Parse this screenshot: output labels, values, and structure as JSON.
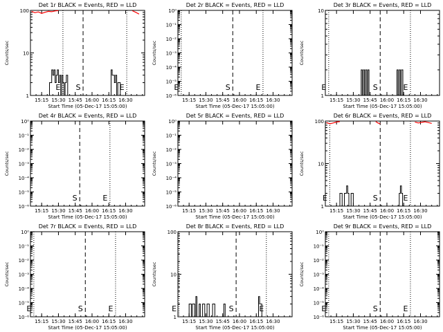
{
  "colors": {
    "events": "#000000",
    "lld": "#ff0000",
    "background": "#ffffff"
  },
  "chart_data": [
    {
      "type": "line",
      "title": "Det 1r BLACK = Events, RED = LLD",
      "xlabel": "Start Time (05-Dec-17 15:05:00)",
      "ylabel": "Counts/sec",
      "y_scale": "log",
      "ylim": [
        1,
        100
      ],
      "yticks": [
        {
          "v": 1,
          "label": "1"
        },
        {
          "v": 10,
          "label": "10"
        },
        {
          "v": 100,
          "label": "100"
        }
      ],
      "x_ticks": [
        "15:15",
        "15:30",
        "15:45",
        "16:00",
        "16:15",
        "16:30"
      ],
      "markers": {
        "E": [
          "15:34",
          "16:31"
        ],
        "S": [
          "15:52"
        ]
      },
      "lld": [
        {
          "t": [
            "15:06",
            "15:09",
            "15:12",
            "15:15",
            "15:18",
            "15:21",
            "15:24",
            "15:27",
            "15:30"
          ],
          "v": [
            95,
            88,
            92,
            85,
            90,
            95,
            93,
            97,
            99
          ]
        },
        {
          "t": [
            "16:36",
            "16:39",
            "16:42"
          ],
          "v": [
            98,
            90,
            82
          ]
        }
      ],
      "events": [
        {
          "t": [
            "15:22",
            "15:24",
            "15:25",
            "15:26",
            "15:27",
            "15:28",
            "15:29",
            "15:30",
            "15:31",
            "15:32",
            "15:33",
            "15:34",
            "15:35",
            "15:36",
            "15:37"
          ],
          "v": [
            2,
            4,
            3,
            4,
            2,
            3,
            4,
            2,
            3,
            1,
            3,
            2,
            1,
            2,
            3
          ]
        },
        {
          "t": [
            "16:17",
            "16:18",
            "16:19",
            "16:20",
            "16:21",
            "16:22",
            "16:23",
            "16:24"
          ],
          "v": [
            4,
            3,
            3,
            2,
            3,
            1,
            2,
            2
          ]
        }
      ]
    },
    {
      "type": "line",
      "title": "Det 2r BLACK = Events, RED = LLD",
      "xlabel": "Start Time (05-Dec-17 15:05:00)",
      "ylabel": "Counts/sec",
      "y_scale": "log",
      "ylim": [
        1e-06,
        1
      ],
      "yticks": [
        {
          "v": 1e-06,
          "label": "10⁻⁶"
        },
        {
          "v": 1e-05,
          "label": "10⁻⁵"
        },
        {
          "v": 0.0001,
          "label": "10⁻⁴"
        },
        {
          "v": 0.001,
          "label": "10⁻³"
        },
        {
          "v": 0.01,
          "label": "10⁻²"
        },
        {
          "v": 0.1,
          "label": "10⁻¹"
        },
        {
          "v": 1,
          "label": "10⁰"
        }
      ],
      "x_ticks": [
        "15:15",
        "15:30",
        "15:45",
        "16:00",
        "16:15",
        "16:30"
      ],
      "markers": {
        "E": [
          "15:08",
          "16:21"
        ],
        "S": [
          "15:54"
        ]
      },
      "lld": [],
      "events": []
    },
    {
      "type": "line",
      "title": "Det 3r BLACK = Events, RED = LLD",
      "xlabel": "Start Time (05-Dec-17 15:05:00)",
      "ylabel": "Counts/sec",
      "y_scale": "log",
      "ylim": [
        1,
        10
      ],
      "yticks": [
        {
          "v": 1,
          "label": "1"
        },
        {
          "v": 10,
          "label": "10"
        }
      ],
      "x_ticks": [
        "15:15",
        "15:30",
        "15:45",
        "16:00",
        "16:15",
        "16:30"
      ],
      "markers": {
        "E": [
          "15:08",
          "16:21"
        ],
        "S": [
          "15:54"
        ]
      },
      "lld": [],
      "events": [
        {
          "t": [
            "15:37",
            "15:38",
            "15:39",
            "15:40",
            "15:41",
            "15:42",
            "15:43",
            "15:44"
          ],
          "v": [
            2,
            1,
            2,
            1,
            2,
            1,
            2,
            1
          ]
        },
        {
          "t": [
            "16:09",
            "16:10",
            "16:11",
            "16:12",
            "16:13"
          ],
          "v": [
            2,
            1,
            2,
            1,
            2
          ]
        }
      ]
    },
    {
      "type": "line",
      "title": "Det 4r BLACK = Events, RED = LLD",
      "xlabel": "Start Time (05-Dec-17 15:05:00)",
      "ylabel": "Counts/sec",
      "y_scale": "log",
      "ylim": [
        1e-06,
        1
      ],
      "yticks": [
        {
          "v": 1e-06,
          "label": "10⁻⁶"
        },
        {
          "v": 1e-05,
          "label": "10⁻⁵"
        },
        {
          "v": 0.0001,
          "label": "10⁻⁴"
        },
        {
          "v": 0.001,
          "label": "10⁻³"
        },
        {
          "v": 0.01,
          "label": "10⁻²"
        },
        {
          "v": 0.1,
          "label": "10⁻¹"
        },
        {
          "v": 1,
          "label": "10⁰"
        }
      ],
      "x_ticks": [
        "15:15",
        "15:30",
        "15:45",
        "16:00",
        "16:15",
        "16:30"
      ],
      "markers": {
        "E": [
          "16:16"
        ],
        "S": [
          "15:49"
        ]
      },
      "lld": [],
      "events": []
    },
    {
      "type": "line",
      "title": "Det 5r BLACK = Events, RED = LLD",
      "xlabel": "Start Time (05-Dec-17 15:05:00)",
      "ylabel": "Counts/sec",
      "y_scale": "log",
      "ylim": [
        1e-06,
        1
      ],
      "yticks": [
        {
          "v": 1e-06,
          "label": "10⁻⁶"
        },
        {
          "v": 1e-05,
          "label": "10⁻⁵"
        },
        {
          "v": 0.0001,
          "label": "10⁻⁴"
        },
        {
          "v": 0.001,
          "label": "10⁻³"
        },
        {
          "v": 0.01,
          "label": "10⁻²"
        },
        {
          "v": 0.1,
          "label": "10⁻¹"
        },
        {
          "v": 1,
          "label": "10⁰"
        }
      ],
      "x_ticks": [
        "15:15",
        "15:30",
        "15:45",
        "16:00",
        "16:15",
        "16:30"
      ],
      "markers": {
        "E": [],
        "S": []
      },
      "lld": [],
      "events": []
    },
    {
      "type": "line",
      "title": "Det 6r BLACK = Events, RED = LLD",
      "xlabel": "Start Time (05-Dec-17 15:05:00)",
      "ylabel": "Counts/sec",
      "y_scale": "log",
      "ylim": [
        1,
        100
      ],
      "yticks": [
        {
          "v": 1,
          "label": "1"
        },
        {
          "v": 10,
          "label": "10"
        },
        {
          "v": 100,
          "label": "100"
        }
      ],
      "x_ticks": [
        "15:15",
        "15:30",
        "15:45",
        "16:00",
        "16:15",
        "16:30"
      ],
      "markers": {
        "E": [
          "15:09",
          "16:21"
        ],
        "S": [
          "15:54"
        ]
      },
      "lld": [
        {
          "t": [
            "15:06",
            "15:09",
            "15:12",
            "15:15",
            "15:18"
          ],
          "v": [
            92,
            86,
            90,
            95,
            97
          ]
        },
        {
          "t": [
            "15:50",
            "15:52",
            "15:54"
          ],
          "v": [
            97,
            90,
            86
          ]
        },
        {
          "t": [
            "16:25",
            "16:28",
            "16:31",
            "16:34",
            "16:37",
            "16:40"
          ],
          "v": [
            95,
            90,
            93,
            96,
            92,
            88
          ]
        }
      ],
      "events": [
        {
          "t": [
            "15:16",
            "15:18",
            "15:20",
            "15:22",
            "15:24",
            "15:25",
            "15:26",
            "15:28",
            "15:30"
          ],
          "v": [
            1,
            2,
            1,
            2,
            3,
            2,
            1,
            2,
            1
          ]
        },
        {
          "t": [
            "16:11",
            "16:12",
            "16:13",
            "16:14"
          ],
          "v": [
            2,
            3,
            2,
            1
          ]
        }
      ]
    },
    {
      "type": "line",
      "title": "Det 7r BLACK = Events, RED = LLD",
      "xlabel": "Start Time (05-Dec-17 15:05:00)",
      "ylabel": "Counts/sec",
      "y_scale": "log",
      "ylim": [
        1e-06,
        1
      ],
      "yticks": [
        {
          "v": 1e-06,
          "label": "10⁻⁶"
        },
        {
          "v": 1e-05,
          "label": "10⁻⁵"
        },
        {
          "v": 0.0001,
          "label": "10⁻⁴"
        },
        {
          "v": 0.001,
          "label": "10⁻³"
        },
        {
          "v": 0.01,
          "label": "10⁻²"
        },
        {
          "v": 0.1,
          "label": "10⁻¹"
        },
        {
          "v": 1,
          "label": "10⁰"
        }
      ],
      "x_ticks": [
        "15:15",
        "15:30",
        "15:45",
        "16:00",
        "16:15",
        "16:30"
      ],
      "markers": {
        "E": [
          "15:08",
          "16:21"
        ],
        "S": [
          "15:54"
        ]
      },
      "lld": [],
      "events": []
    },
    {
      "type": "line",
      "title": "Det 8r BLACK = Events, RED = LLD",
      "xlabel": "Start Time (05-Dec-17 15:05:00)",
      "ylabel": "Counts/sec",
      "y_scale": "log",
      "ylim": [
        1,
        100
      ],
      "yticks": [
        {
          "v": 1,
          "label": "1"
        },
        {
          "v": 10,
          "label": "10"
        },
        {
          "v": 100,
          "label": "100"
        }
      ],
      "x_ticks": [
        "15:15",
        "15:30",
        "15:45",
        "16:00",
        "16:15",
        "16:30"
      ],
      "markers": {
        "E": [
          "15:06",
          "16:24"
        ],
        "S": [
          "15:57"
        ]
      },
      "lld": [],
      "events": [
        {
          "t": [
            "15:14",
            "15:15",
            "15:17",
            "15:18",
            "15:20",
            "15:21",
            "15:22",
            "15:24",
            "15:25",
            "15:27",
            "15:29",
            "15:31",
            "15:33",
            "15:36",
            "15:38"
          ],
          "v": [
            1,
            2,
            1,
            2,
            1,
            3,
            1,
            2,
            1,
            2,
            1,
            2,
            1,
            2,
            1
          ]
        },
        {
          "t": [
            "15:46"
          ],
          "v": [
            2
          ]
        },
        {
          "t": [
            "16:17",
            "16:18",
            "16:19",
            "16:20"
          ],
          "v": [
            3,
            2,
            2,
            1
          ]
        }
      ]
    },
    {
      "type": "line",
      "title": "Det 9r BLACK = Events, RED = LLD",
      "xlabel": "Start Time (05-Dec-17 15:05:00)",
      "ylabel": "Counts/sec",
      "y_scale": "log",
      "ylim": [
        1e-06,
        1
      ],
      "yticks": [
        {
          "v": 1e-06,
          "label": "10⁻⁶"
        },
        {
          "v": 1e-05,
          "label": "10⁻⁵"
        },
        {
          "v": 0.0001,
          "label": "10⁻⁴"
        },
        {
          "v": 0.001,
          "label": "10⁻³"
        },
        {
          "v": 0.01,
          "label": "10⁻²"
        },
        {
          "v": 0.1,
          "label": "10⁻¹"
        },
        {
          "v": 1,
          "label": "10⁰"
        }
      ],
      "x_ticks": [
        "15:15",
        "15:30",
        "15:45",
        "16:00",
        "16:15",
        "16:30"
      ],
      "markers": {
        "E": [
          "15:08",
          "16:21"
        ],
        "S": [
          "15:54"
        ]
      },
      "lld": [],
      "events": []
    }
  ]
}
